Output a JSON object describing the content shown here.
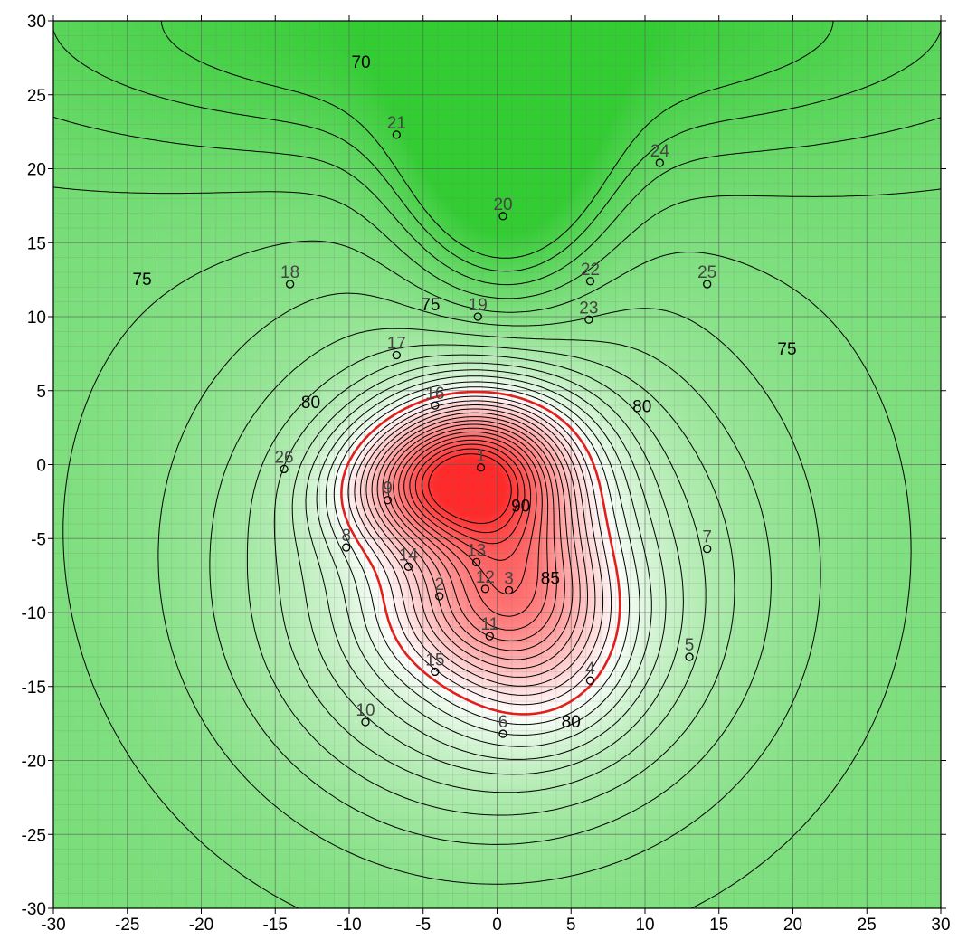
{
  "chart_data": {
    "type": "contour",
    "title": "",
    "xlabel": "",
    "ylabel": "",
    "xlim": [
      -30,
      30
    ],
    "ylim": [
      -30,
      30
    ],
    "x_ticks": [
      -30,
      -25,
      -20,
      -15,
      -10,
      -5,
      0,
      5,
      10,
      15,
      20,
      25,
      30
    ],
    "y_ticks": [
      -30,
      -25,
      -20,
      -15,
      -10,
      -5,
      0,
      5,
      10,
      15,
      20,
      25,
      30
    ],
    "x_tick_labels": [
      "-30",
      "-25",
      "-20",
      "-15",
      "-10",
      "-5",
      "0",
      "5",
      "10",
      "15",
      "20",
      "25",
      "30"
    ],
    "y_tick_labels": [
      "-30",
      "-25",
      "-20",
      "-15",
      "-10",
      "-5",
      "0",
      "5",
      "10",
      "15",
      "20",
      "25",
      "30"
    ],
    "grid": true,
    "minor_grid_step": 1,
    "colormap": {
      "low": "#33cc33",
      "mid": "#ffffff",
      "high": "#ff2a2a"
    },
    "highlight_level": 80,
    "highlight_color": "#e0201c",
    "contour_labels": [
      {
        "text": "70",
        "x": -9.2,
        "y": 27.2
      },
      {
        "text": "75",
        "x": -24.0,
        "y": 12.5
      },
      {
        "text": "75",
        "x": -4.5,
        "y": 10.8
      },
      {
        "text": "75",
        "x": 19.6,
        "y": 7.8
      },
      {
        "text": "80",
        "x": -12.6,
        "y": 4.2
      },
      {
        "text": "80",
        "x": 9.8,
        "y": 3.9
      },
      {
        "text": "80",
        "x": 5.0,
        "y": -17.4
      },
      {
        "text": "85",
        "x": 3.6,
        "y": -7.7
      },
      {
        "text": "90",
        "x": 1.6,
        "y": -2.8
      }
    ],
    "points": [
      {
        "id": "1",
        "x": -1.1,
        "y": -0.2
      },
      {
        "id": "2",
        "x": -3.9,
        "y": -8.9
      },
      {
        "id": "3",
        "x": 0.8,
        "y": -8.5
      },
      {
        "id": "4",
        "x": 6.3,
        "y": -14.6
      },
      {
        "id": "5",
        "x": 13.0,
        "y": -13.0
      },
      {
        "id": "6",
        "x": 0.4,
        "y": -18.2
      },
      {
        "id": "7",
        "x": 14.2,
        "y": -5.7
      },
      {
        "id": "8",
        "x": -10.2,
        "y": -5.6
      },
      {
        "id": "9",
        "x": -7.4,
        "y": -2.4
      },
      {
        "id": "10",
        "x": -8.9,
        "y": -17.4
      },
      {
        "id": "11",
        "x": -0.5,
        "y": -11.6
      },
      {
        "id": "12",
        "x": -0.8,
        "y": -8.4
      },
      {
        "id": "13",
        "x": -1.4,
        "y": -6.6
      },
      {
        "id": "14",
        "x": -6.0,
        "y": -6.9
      },
      {
        "id": "15",
        "x": -4.2,
        "y": -14.0
      },
      {
        "id": "16",
        "x": -4.2,
        "y": 4.0
      },
      {
        "id": "17",
        "x": -6.8,
        "y": 7.4
      },
      {
        "id": "18",
        "x": -14.0,
        "y": 12.2
      },
      {
        "id": "19",
        "x": -1.3,
        "y": 10.0
      },
      {
        "id": "20",
        "x": 0.4,
        "y": 16.8
      },
      {
        "id": "21",
        "x": -6.8,
        "y": 22.3
      },
      {
        "id": "22",
        "x": 6.3,
        "y": 12.4
      },
      {
        "id": "23",
        "x": 6.2,
        "y": 9.8
      },
      {
        "id": "24",
        "x": 11.0,
        "y": 20.4
      },
      {
        "id": "25",
        "x": 14.2,
        "y": 12.2
      },
      {
        "id": "26",
        "x": -14.4,
        "y": -0.3
      }
    ]
  }
}
